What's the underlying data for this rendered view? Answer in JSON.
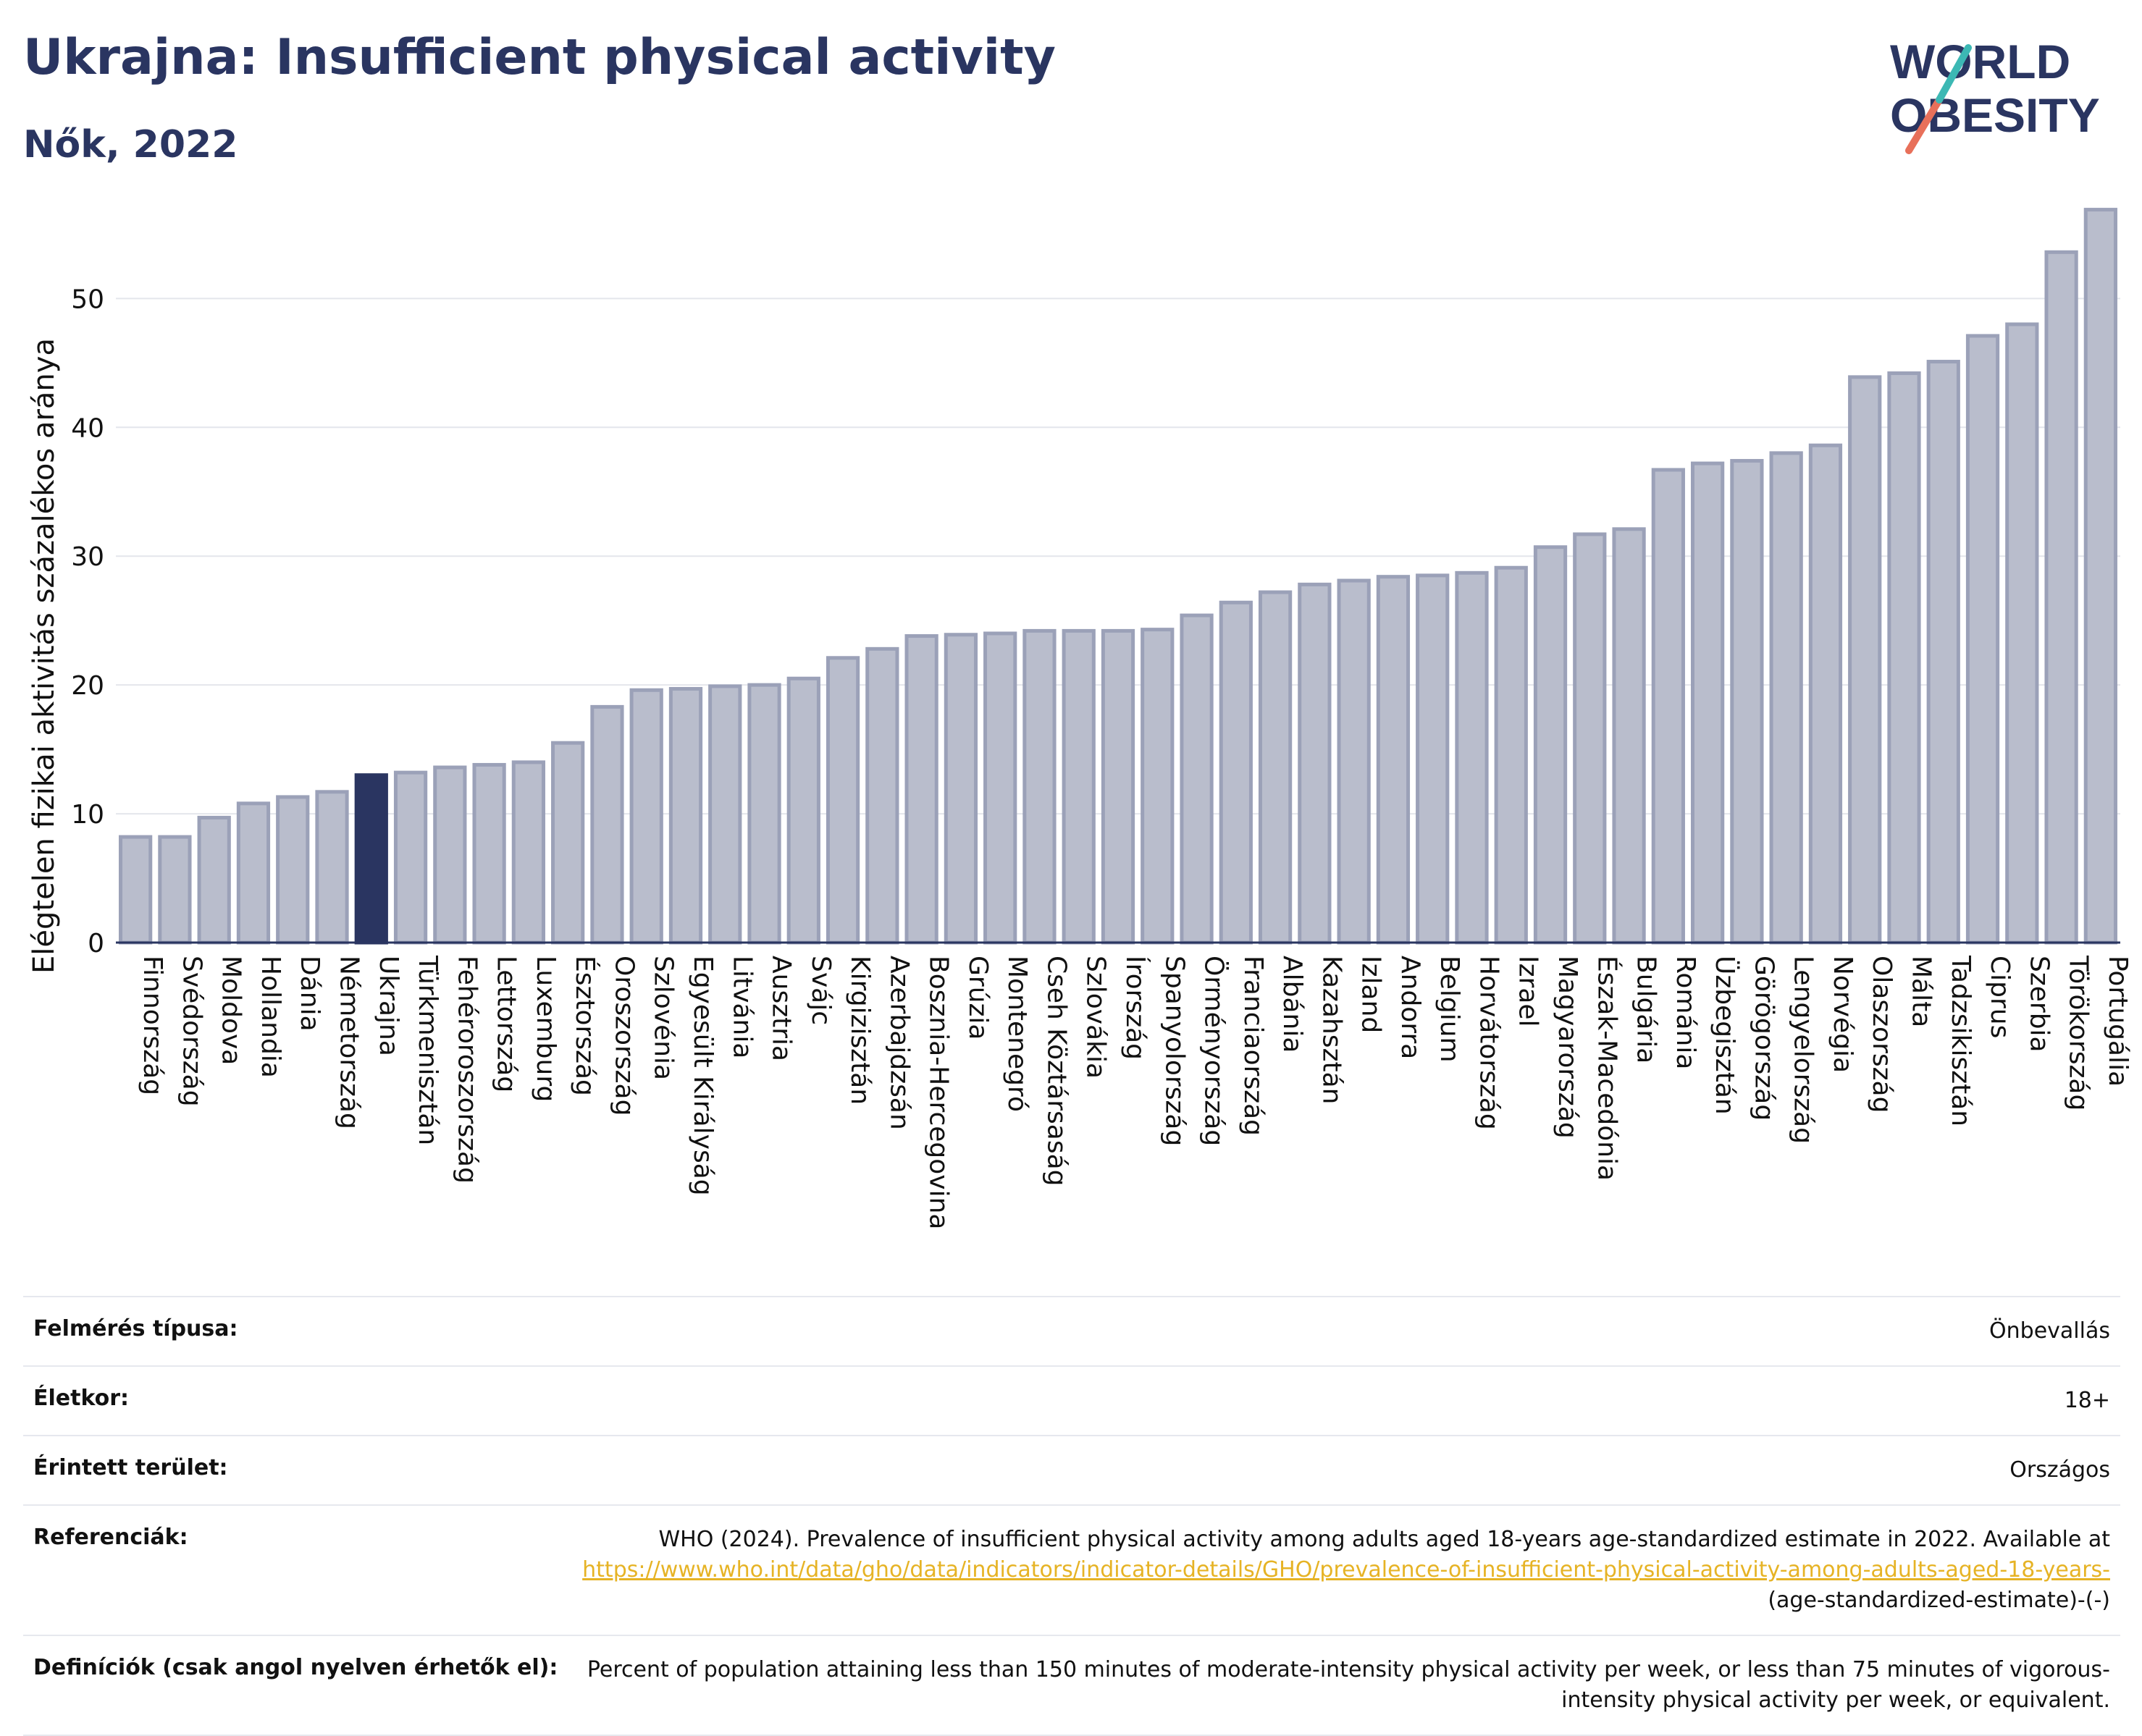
{
  "header": {
    "title": "Ukrajna: Insufficient physical activity",
    "subtitle": "Nők, 2022"
  },
  "logo": {
    "line1": "WORLD",
    "line2": "OBESITY"
  },
  "chart_data": {
    "type": "bar",
    "ylabel": "Elégtelen fizikai aktivitás százalékos aránya",
    "xlabel": "",
    "ylim": [
      0,
      58
    ],
    "yticks": [
      0,
      10,
      20,
      30,
      40,
      50
    ],
    "grid": true,
    "highlight": "Ukrajna",
    "colors": {
      "bar": "#b9bdcc",
      "bar_edge": "#9ba1b8",
      "highlight": "#2a3561"
    },
    "categories": [
      "Finnország",
      "Svédország",
      "Moldova",
      "Hollandia",
      "Dánia",
      "Németország",
      "Ukrajna",
      "Türkmenisztán",
      "Fehéroroszország",
      "Lettország",
      "Luxemburg",
      "Észtország",
      "Oroszország",
      "Szlovénia",
      "Egyesült Királyság",
      "Litvánia",
      "Ausztria",
      "Svájc",
      "Kirgizisztán",
      "Azerbajdzsán",
      "Bosznia-Hercegovina",
      "Grúzia",
      "Montenegró",
      "Cseh Köztársaság",
      "Szlovákia",
      "Írország",
      "Spanyolország",
      "Örményország",
      "Franciaország",
      "Albánia",
      "Kazahsztán",
      "Izland",
      "Andorra",
      "Belgium",
      "Horvátország",
      "Izrael",
      "Magyarország",
      "Észak-Macedónia",
      "Bulgária",
      "Románia",
      "Üzbegisztán",
      "Görögország",
      "Lengyelország",
      "Norvégia",
      "Olaszország",
      "Málta",
      "Tadzsikisztán",
      "Ciprus",
      "Szerbia",
      "Törökország",
      "Portugália"
    ],
    "values": [
      8.2,
      8.2,
      9.7,
      10.8,
      11.3,
      11.7,
      13.0,
      13.2,
      13.6,
      13.8,
      14.0,
      15.5,
      18.3,
      19.6,
      19.7,
      19.9,
      20.0,
      20.5,
      22.1,
      22.8,
      23.8,
      23.9,
      24.0,
      24.2,
      24.2,
      24.2,
      24.3,
      25.4,
      26.4,
      27.2,
      27.8,
      28.1,
      28.4,
      28.5,
      28.7,
      29.1,
      30.7,
      31.7,
      32.1,
      36.7,
      37.2,
      37.4,
      38.0,
      38.6,
      43.9,
      44.2,
      45.1,
      47.1,
      48.0,
      53.6,
      56.9
    ]
  },
  "info": {
    "survey_label": "Felmérés típusa:",
    "survey_value": "Önbevallás",
    "age_label": "Életkor:",
    "age_value": "18+",
    "area_label": "Érintett terület:",
    "area_value": "Országos",
    "ref_label": "Referenciák:",
    "ref_text": "WHO (2024). Prevalence of insufficient physical activity among adults aged 18-years age-standardized estimate in 2022. Available at",
    "ref_link": "https://www.who.int/data/gho/data/indicators/indicator-details/GHO/prevalence-of-insufficient-physical-activity-among-adults-aged-18-years-",
    "ref_suffix": "(age-standardized-estimate)-(-)",
    "def_label": "Definíciók (csak angol nyelven érhetők el):",
    "def_value": "Percent of population attaining less than 150 minutes of moderate-intensity physical activity per week, or less than 75 minutes of vigorous-intensity physical activity per week, or equivalent."
  }
}
